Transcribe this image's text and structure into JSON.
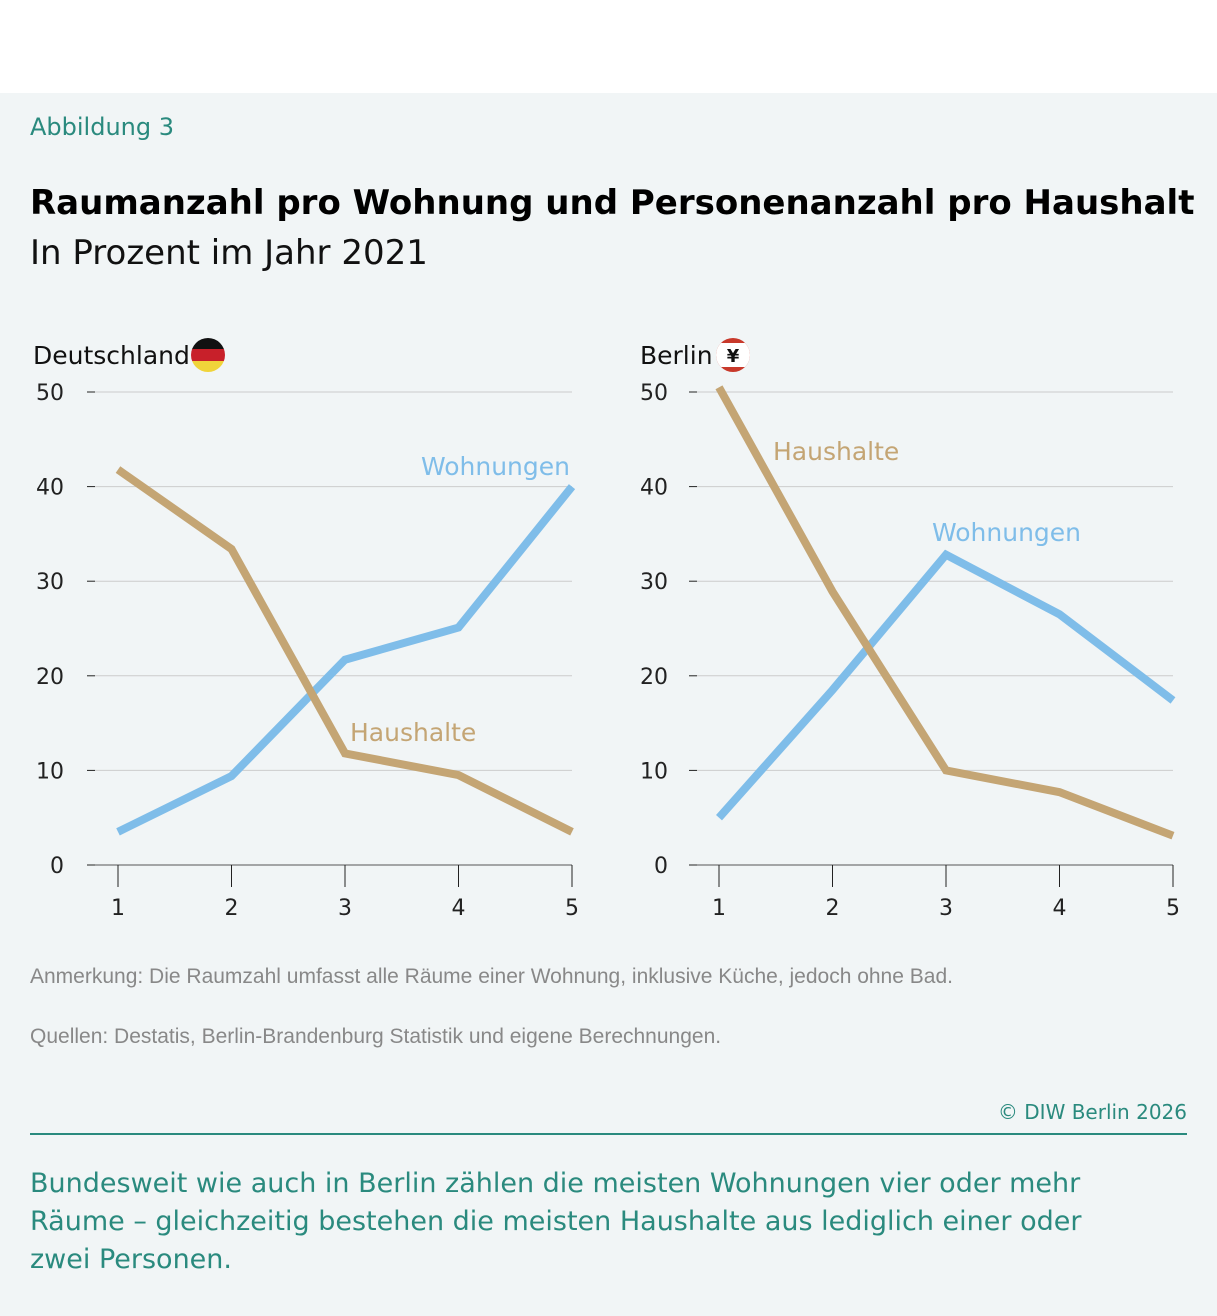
{
  "figure_label": "Abbildung 3",
  "title": "Raumanzahl pro Wohnung und Personenanzahl pro Haushalt",
  "subtitle": "In Prozent im Jahr 2021",
  "colors": {
    "wohnungen": "#7fbde9",
    "haushalte": "#c4a574",
    "accent": "#2a8a7e"
  },
  "chart_data": [
    {
      "type": "line",
      "panel_title": "Deutschland",
      "flag_icon": "germany-flag",
      "x": [
        1,
        2,
        3,
        4,
        5
      ],
      "xticks": [
        "1",
        "2",
        "3",
        "4",
        "5"
      ],
      "yticks": [
        "0",
        "10",
        "20",
        "30",
        "40",
        "50"
      ],
      "ylim": [
        0,
        50
      ],
      "grid": true,
      "series": [
        {
          "name": "Wohnungen",
          "values": [
            3.5,
            9.4,
            21.7,
            25.1,
            40.0
          ]
        },
        {
          "name": "Haushalte",
          "values": [
            41.8,
            33.4,
            11.8,
            9.5,
            3.5
          ]
        }
      ]
    },
    {
      "type": "line",
      "panel_title": "Berlin",
      "flag_icon": "berlin-flag",
      "x": [
        1,
        2,
        3,
        4,
        5
      ],
      "xticks": [
        "1",
        "2",
        "3",
        "4",
        "5"
      ],
      "yticks": [
        "0",
        "10",
        "20",
        "30",
        "40",
        "50"
      ],
      "ylim": [
        0,
        50
      ],
      "grid": true,
      "series": [
        {
          "name": "Wohnungen",
          "values": [
            5.0,
            18.5,
            32.8,
            26.5,
            17.4
          ]
        },
        {
          "name": "Haushalte",
          "values": [
            50.5,
            28.9,
            10.0,
            7.7,
            3.1
          ]
        }
      ]
    }
  ],
  "note": "Anmerkung: Die Raumzahl umfasst alle Räume einer Wohnung, inklusive Küche, jedoch ohne Bad.",
  "sources": "Quellen: Destatis, Berlin-Brandenburg Statistik und eigene Berechnungen.",
  "copyright": "© DIW Berlin 2026",
  "summary": "Bundesweit wie auch in Berlin zählen die meisten Wohnungen vier oder mehr Räume – gleichzeitig bestehen die meisten Haushalte aus lediglich einer oder zwei Personen."
}
